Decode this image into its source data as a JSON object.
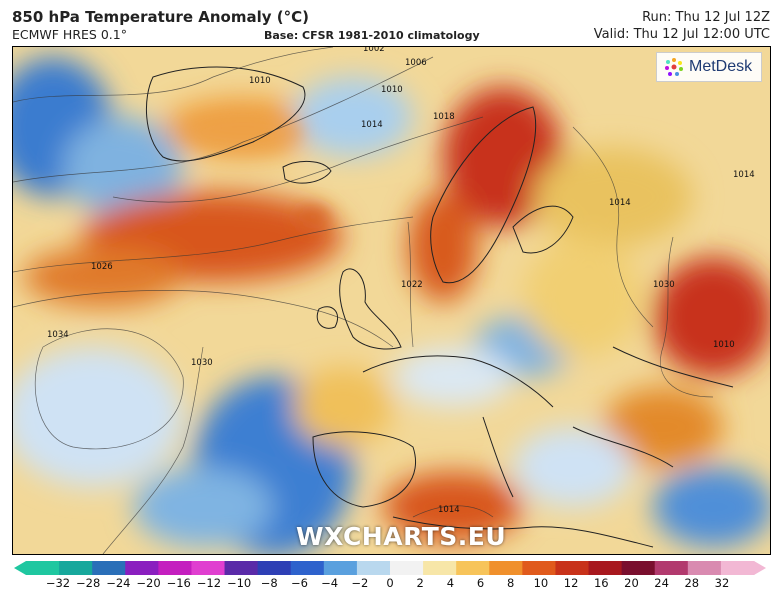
{
  "header": {
    "title": "850 hPa Temperature Anomaly (°C)",
    "model": "ECMWF HRES 0.1°",
    "base": "Base: CFSR 1981-2010 climatology",
    "run": "Run: Thu 12 Jul 12Z",
    "valid": "Valid: Thu 12 Jul 12:00 UTC"
  },
  "logo": {
    "text": "MetDesk"
  },
  "watermark": "WXCHARTS.EU",
  "isobar_labels": [
    "1002",
    "1006",
    "1010",
    "1014",
    "1018",
    "1026",
    "1034",
    "1030",
    "1022",
    "1014",
    "1010",
    "1014",
    "1030",
    "1010",
    "1014"
  ],
  "colorbar": {
    "ticks": [
      "−32",
      "−28",
      "−24",
      "−20",
      "−16",
      "−12",
      "−10",
      "−8",
      "−6",
      "−4",
      "−2",
      "0",
      "2",
      "4",
      "6",
      "8",
      "10",
      "12",
      "16",
      "20",
      "24",
      "28",
      "32"
    ],
    "colors": [
      "#1fc7a0",
      "#17a89c",
      "#2a6fb8",
      "#8a1fbf",
      "#c41fbf",
      "#e03fd0",
      "#5a2aa8",
      "#2e3fb5",
      "#2e62cc",
      "#5aa0de",
      "#b9d8ee",
      "#f2f2f2",
      "#f7e6a8",
      "#f7c45a",
      "#f0902c",
      "#e05a1c",
      "#c8321a",
      "#a8181e",
      "#7a0f2e",
      "#b23a6e",
      "#d98ab0",
      "#f2b8d4"
    ]
  }
}
